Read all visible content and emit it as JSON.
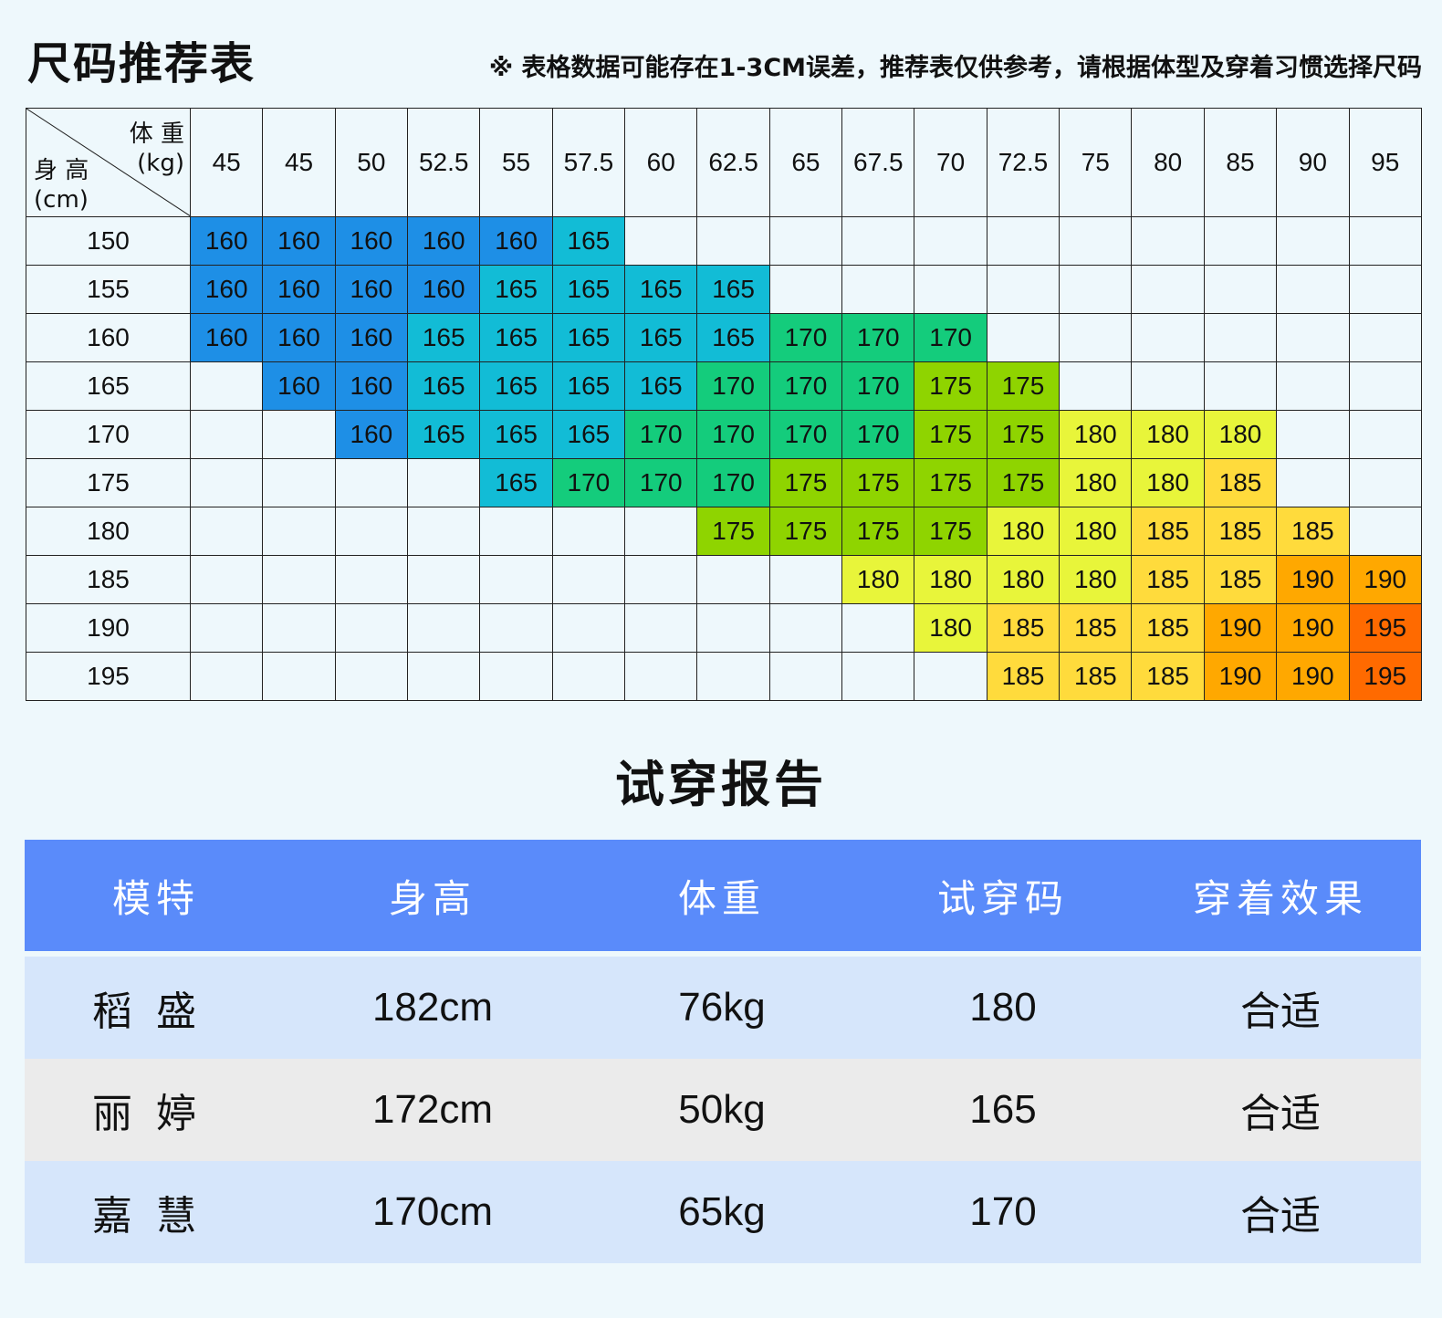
{
  "title": "尺码推荐表",
  "note": "※ 表格数据可能存在1-3CM误差，推荐表仅供参考，请根据体型及穿着习惯选择尺码",
  "size_table": {
    "weight_label_line1": "体 重",
    "weight_label_line2": "(kg)",
    "height_label_line1": "身 高",
    "height_label_line2": "(cm)",
    "weights": [
      "45",
      "45",
      "50",
      "52.5",
      "55",
      "57.5",
      "60",
      "62.5",
      "65",
      "67.5",
      "70",
      "72.5",
      "75",
      "80",
      "85",
      "90",
      "95"
    ],
    "rows": [
      {
        "height": "150",
        "sizes": [
          "160",
          "160",
          "160",
          "160",
          "160",
          "165",
          "",
          "",
          "",
          "",
          "",
          "",
          "",
          "",
          "",
          "",
          ""
        ]
      },
      {
        "height": "155",
        "sizes": [
          "160",
          "160",
          "160",
          "160",
          "165",
          "165",
          "165",
          "165",
          "",
          "",
          "",
          "",
          "",
          "",
          "",
          "",
          ""
        ]
      },
      {
        "height": "160",
        "sizes": [
          "160",
          "160",
          "160",
          "165",
          "165",
          "165",
          "165",
          "165",
          "170",
          "170",
          "170",
          "",
          "",
          "",
          "",
          "",
          ""
        ]
      },
      {
        "height": "165",
        "sizes": [
          "",
          "160",
          "160",
          "165",
          "165",
          "165",
          "165",
          "170",
          "170",
          "170",
          "175",
          "175",
          "",
          "",
          "",
          "",
          ""
        ]
      },
      {
        "height": "170",
        "sizes": [
          "",
          "",
          "160",
          "165",
          "165",
          "165",
          "170",
          "170",
          "170",
          "170",
          "175",
          "175",
          "180",
          "180",
          "180",
          "",
          ""
        ]
      },
      {
        "height": "175",
        "sizes": [
          "",
          "",
          "",
          "",
          "165",
          "170",
          "170",
          "170",
          "175",
          "175",
          "175",
          "175",
          "180",
          "180",
          "185",
          "",
          ""
        ]
      },
      {
        "height": "180",
        "sizes": [
          "",
          "",
          "",
          "",
          "",
          "",
          "",
          "175",
          "175",
          "175",
          "175",
          "180",
          "180",
          "185",
          "185",
          "185",
          ""
        ]
      },
      {
        "height": "185",
        "sizes": [
          "",
          "",
          "",
          "",
          "",
          "",
          "",
          "",
          "",
          "180",
          "180",
          "180",
          "180",
          "185",
          "185",
          "190",
          "190"
        ]
      },
      {
        "height": "190",
        "sizes": [
          "",
          "",
          "",
          "",
          "",
          "",
          "",
          "",
          "",
          "",
          "180",
          "185",
          "185",
          "185",
          "190",
          "190",
          "195"
        ]
      },
      {
        "height": "195",
        "sizes": [
          "",
          "",
          "",
          "",
          "",
          "",
          "",
          "",
          "",
          "",
          "",
          "185",
          "185",
          "185",
          "190",
          "190",
          "195"
        ]
      }
    ],
    "size_colors": {
      "160": "#1e8fe6",
      "165": "#12bcd6",
      "170": "#14cc7c",
      "175": "#8fd400",
      "180": "#e8f53a",
      "185": "#ffdb3c",
      "190": "#ffa800",
      "195": "#ff6a00"
    }
  },
  "report": {
    "title": "试穿报告",
    "header": [
      "模特",
      "身高",
      "体重",
      "试穿码",
      "穿着效果"
    ],
    "rows": [
      {
        "name": "稻盛",
        "height": "182cm",
        "weight": "76kg",
        "size": "180",
        "effect": "合适"
      },
      {
        "name": "丽婷",
        "height": "172cm",
        "weight": "50kg",
        "size": "165",
        "effect": "合适"
      },
      {
        "name": "嘉慧",
        "height": "170cm",
        "weight": "65kg",
        "size": "170",
        "effect": "合适"
      }
    ]
  }
}
